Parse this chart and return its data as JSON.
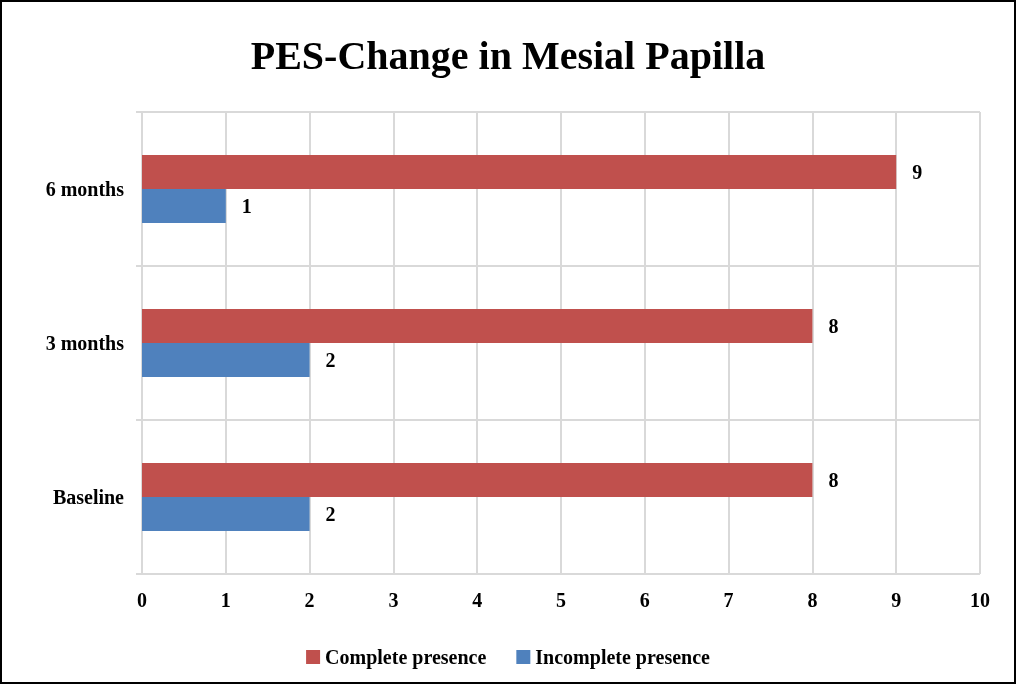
{
  "chart_data": {
    "type": "bar",
    "title": "PES-Change in Mesial Papilla",
    "orientation": "horizontal",
    "categories": [
      "6 months",
      "3 months",
      "Baseline"
    ],
    "series": [
      {
        "name": "Complete presence",
        "color": "#c0504d",
        "values": [
          9,
          8,
          8
        ]
      },
      {
        "name": "Incomplete presence",
        "color": "#4f81bd",
        "values": [
          1,
          2,
          2
        ]
      }
    ],
    "xlim": [
      0,
      10
    ],
    "xticks": [
      0,
      1,
      2,
      3,
      4,
      5,
      6,
      7,
      8,
      9,
      10
    ],
    "grid": true,
    "legend": "bottom",
    "data_labels": true
  }
}
